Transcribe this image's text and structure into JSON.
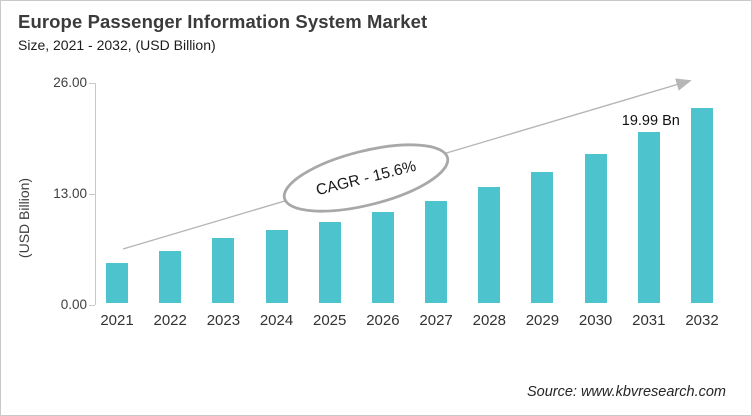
{
  "header": {
    "title": "Europe Passenger Information System Market",
    "subtitle": "Size, 2021 - 2032, (USD Billion)"
  },
  "chart_data": {
    "type": "bar",
    "title": "Europe Passenger Information System Market",
    "subtitle": "Size, 2021 - 2032, (USD Billion)",
    "categories": [
      "2021",
      "2022",
      "2023",
      "2024",
      "2025",
      "2026",
      "2027",
      "2028",
      "2029",
      "2030",
      "2031",
      "2032"
    ],
    "values": [
      4.7,
      6.1,
      7.6,
      8.5,
      9.5,
      10.7,
      11.9,
      13.6,
      15.3,
      17.5,
      19.99,
      22.9
    ],
    "xlabel": "",
    "ylabel": "(USD Billion)",
    "ylim": [
      0,
      26
    ],
    "y_ticks": [
      0,
      13,
      26
    ],
    "y_tick_labels": [
      "0.00",
      "13.00",
      "26.00"
    ],
    "grid": false,
    "legend": false,
    "annotations": {
      "cagr_label": "CAGR - 15.6%",
      "value_label": {
        "text": "19.99 Bn",
        "category": "2031"
      },
      "trend_arrow": "upward trend arrow from 2021 to 2032"
    }
  },
  "footer": {
    "source": "Source: www.kbvresearch.com"
  },
  "colors": {
    "bar": "#4CC3CD",
    "axis": "#c9c9c9",
    "arrow": "#b6b6b6",
    "ellipse_stroke": "#a8a8a8",
    "title_text": "#3b3b3b"
  }
}
